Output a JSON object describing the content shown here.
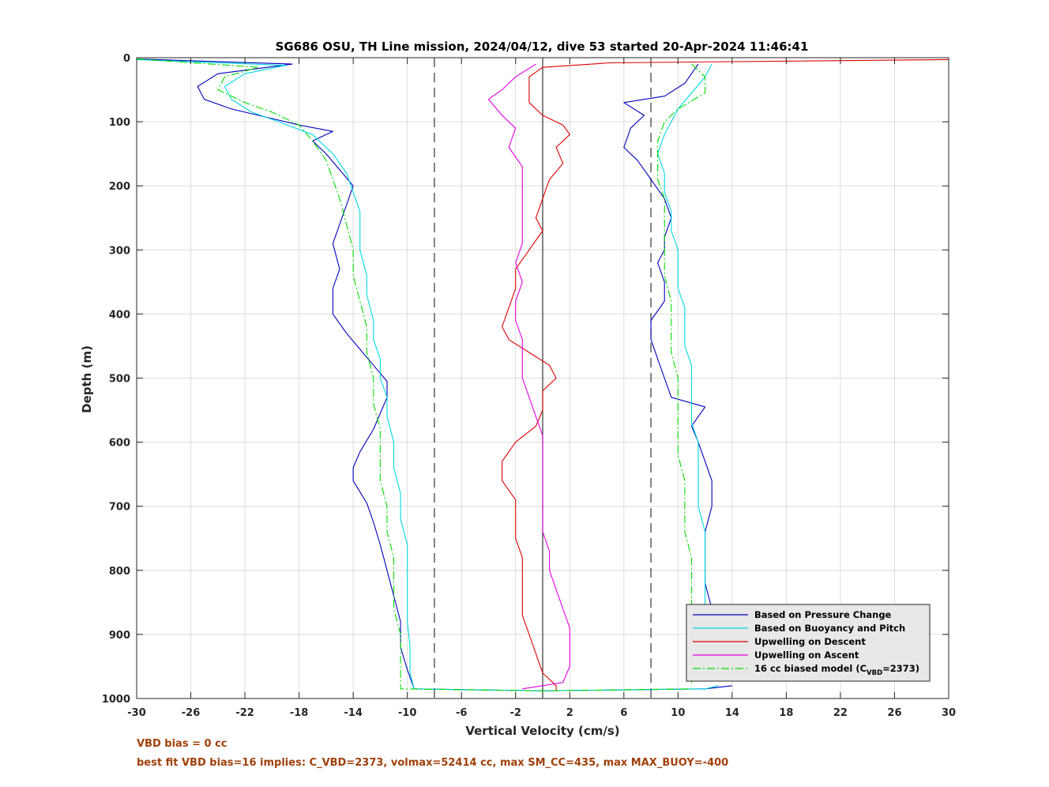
{
  "chart_data": {
    "type": "line",
    "title": "SG686 OSU, TH Line mission, 2024/04/12, dive 53 started 20-Apr-2024 11:46:41",
    "xlabel": "Vertical Velocity (cm/s)",
    "ylabel": "Depth (m)",
    "xlim": [
      -30,
      30
    ],
    "ylim": [
      0,
      1000
    ],
    "y_reversed": true,
    "grid": true,
    "x_ticks": [
      -30,
      -26,
      -22,
      -18,
      -14,
      -10,
      -6,
      -2,
      2,
      6,
      10,
      14,
      18,
      22,
      26,
      30
    ],
    "y_ticks": [
      0,
      100,
      200,
      300,
      400,
      500,
      600,
      700,
      800,
      900,
      1000
    ],
    "reference_lines": {
      "dashed_x": [
        -8,
        8
      ],
      "solid_x": [
        0
      ]
    },
    "legend_position": "bottom-right",
    "series": [
      {
        "name": "Based on Pressure Change",
        "color": "#0000bb",
        "style": "solid",
        "points": [
          [
            -30,
            2
          ],
          [
            -18.5,
            10
          ],
          [
            -24,
            25
          ],
          [
            -25.5,
            45
          ],
          [
            -25,
            65
          ],
          [
            -23,
            80
          ],
          [
            -20,
            95
          ],
          [
            -18,
            105
          ],
          [
            -15.5,
            115
          ],
          [
            -17,
            130
          ],
          [
            -16,
            150
          ],
          [
            -15,
            175
          ],
          [
            -14,
            200
          ],
          [
            -14.5,
            230
          ],
          [
            -15,
            260
          ],
          [
            -15.5,
            290
          ],
          [
            -15,
            330
          ],
          [
            -15.5,
            360
          ],
          [
            -15.5,
            400
          ],
          [
            -14.5,
            430
          ],
          [
            -13.5,
            455
          ],
          [
            -12.5,
            480
          ],
          [
            -11.5,
            505
          ],
          [
            -11.5,
            530
          ],
          [
            -12,
            555
          ],
          [
            -12.5,
            580
          ],
          [
            -13.5,
            615
          ],
          [
            -14,
            640
          ],
          [
            -14,
            660
          ],
          [
            -13,
            695
          ],
          [
            -12.5,
            725
          ],
          [
            -12,
            760
          ],
          [
            -11.5,
            800
          ],
          [
            -11,
            840
          ],
          [
            -10.5,
            880
          ],
          [
            -10.5,
            920
          ],
          [
            -10,
            955
          ],
          [
            -9.5,
            985
          ],
          [
            0,
            988
          ],
          [
            12,
            985
          ],
          [
            14,
            980
          ]
        ]
      },
      {
        "name": "Based on Buoyancy and Pitch",
        "color": "#00d8e0",
        "style": "solid",
        "points": [
          [
            -30,
            3
          ],
          [
            -19,
            12
          ],
          [
            -22,
            25
          ],
          [
            -23.5,
            45
          ],
          [
            -23,
            65
          ],
          [
            -21.5,
            85
          ],
          [
            -19.5,
            100
          ],
          [
            -17,
            120
          ],
          [
            -15.5,
            150
          ],
          [
            -14.5,
            180
          ],
          [
            -14,
            210
          ],
          [
            -13.5,
            240
          ],
          [
            -13.5,
            270
          ],
          [
            -13.5,
            300
          ],
          [
            -13,
            340
          ],
          [
            -13,
            370
          ],
          [
            -12.5,
            410
          ],
          [
            -12.5,
            440
          ],
          [
            -12,
            470
          ],
          [
            -12,
            500
          ],
          [
            -11.5,
            530
          ],
          [
            -11.5,
            560
          ],
          [
            -11,
            600
          ],
          [
            -11,
            640
          ],
          [
            -10.5,
            680
          ],
          [
            -10.5,
            720
          ],
          [
            -10,
            760
          ],
          [
            -10,
            800
          ],
          [
            -10,
            840
          ],
          [
            -10,
            880
          ],
          [
            -9.8,
            920
          ],
          [
            -9.8,
            960
          ],
          [
            -9.5,
            985
          ],
          [
            0,
            988
          ],
          [
            12,
            985
          ],
          [
            13,
            980
          ]
        ]
      },
      {
        "name": "Upwelling on Descent",
        "color": "#dd0000",
        "style": "solid",
        "points": [
          [
            30,
            3
          ],
          [
            5,
            8
          ],
          [
            0,
            15
          ],
          [
            -1,
            30
          ],
          [
            -1,
            50
          ],
          [
            -1,
            70
          ],
          [
            0,
            90
          ],
          [
            1.5,
            105
          ],
          [
            2,
            120
          ],
          [
            1,
            140
          ],
          [
            1.5,
            165
          ],
          [
            0.5,
            190
          ],
          [
            0,
            220
          ],
          [
            -0.5,
            250
          ],
          [
            0,
            270
          ],
          [
            -1,
            300
          ],
          [
            -2,
            330
          ],
          [
            -2,
            360
          ],
          [
            -2.5,
            390
          ],
          [
            -3,
            420
          ],
          [
            -2.5,
            440
          ],
          [
            -1,
            460
          ],
          [
            0.5,
            480
          ],
          [
            1,
            500
          ],
          [
            0,
            520
          ],
          [
            0,
            550
          ],
          [
            -0.5,
            575
          ],
          [
            -2,
            600
          ],
          [
            -3,
            630
          ],
          [
            -3,
            660
          ],
          [
            -2,
            690
          ],
          [
            -2,
            720
          ],
          [
            -2,
            750
          ],
          [
            -1.5,
            780
          ],
          [
            -1.5,
            810
          ],
          [
            -1.5,
            840
          ],
          [
            -1.5,
            870
          ],
          [
            -1,
            900
          ],
          [
            -0.5,
            930
          ],
          [
            0,
            960
          ],
          [
            1,
            980
          ],
          [
            1,
            988
          ]
        ]
      },
      {
        "name": "Upwelling on Ascent",
        "color": "#e000e0",
        "style": "solid",
        "points": [
          [
            -0.5,
            10
          ],
          [
            -2,
            30
          ],
          [
            -3,
            50
          ],
          [
            -4,
            65
          ],
          [
            -3,
            90
          ],
          [
            -2,
            110
          ],
          [
            -2.5,
            140
          ],
          [
            -1.5,
            170
          ],
          [
            -1.5,
            200
          ],
          [
            -1.5,
            230
          ],
          [
            -1.5,
            260
          ],
          [
            -1.5,
            290
          ],
          [
            -2,
            320
          ],
          [
            -1.5,
            350
          ],
          [
            -2,
            380
          ],
          [
            -2,
            410
          ],
          [
            -1.5,
            440
          ],
          [
            -1.5,
            470
          ],
          [
            -1.5,
            500
          ],
          [
            -1,
            530
          ],
          [
            -0.5,
            560
          ],
          [
            0,
            590
          ],
          [
            0,
            620
          ],
          [
            0,
            650
          ],
          [
            0,
            680
          ],
          [
            0,
            710
          ],
          [
            0,
            740
          ],
          [
            0.5,
            770
          ],
          [
            0.5,
            800
          ],
          [
            1,
            830
          ],
          [
            1.5,
            860
          ],
          [
            2,
            890
          ],
          [
            2,
            920
          ],
          [
            2,
            950
          ],
          [
            1.5,
            975
          ],
          [
            -1.5,
            985
          ]
        ]
      },
      {
        "name": "16 cc biased model (C_VBD=2373)",
        "legend_sub": "VBD",
        "legend_prefix": "16 cc biased model (C",
        "legend_suffix": "=2373)",
        "color": "#00dd00",
        "style": "dashdot",
        "points": [
          [
            -30,
            2
          ],
          [
            -21,
            15
          ],
          [
            -23.5,
            30
          ],
          [
            -24,
            50
          ],
          [
            -22,
            70
          ],
          [
            -20,
            85
          ],
          [
            -18,
            105
          ],
          [
            -17,
            130
          ],
          [
            -16,
            160
          ],
          [
            -15.5,
            190
          ],
          [
            -15,
            220
          ],
          [
            -14.5,
            260
          ],
          [
            -14,
            300
          ],
          [
            -14,
            340
          ],
          [
            -13.5,
            380
          ],
          [
            -13,
            420
          ],
          [
            -13,
            460
          ],
          [
            -12.5,
            500
          ],
          [
            -12.5,
            540
          ],
          [
            -12,
            580
          ],
          [
            -12,
            620
          ],
          [
            -12,
            660
          ],
          [
            -11.5,
            700
          ],
          [
            -11.5,
            740
          ],
          [
            -11,
            780
          ],
          [
            -11,
            820
          ],
          [
            -11,
            860
          ],
          [
            -10.5,
            900
          ],
          [
            -10.5,
            940
          ],
          [
            -10.5,
            985
          ],
          [
            0,
            988
          ],
          [
            11,
            985
          ]
        ]
      },
      {
        "name": "Based on Pressure Change (ascent)",
        "legend": false,
        "color": "#0000bb",
        "style": "solid",
        "points": [
          [
            11.5,
            10
          ],
          [
            10.5,
            40
          ],
          [
            9,
            60
          ],
          [
            6,
            70
          ],
          [
            7.5,
            90
          ],
          [
            6.5,
            110
          ],
          [
            6,
            140
          ],
          [
            7,
            160
          ],
          [
            8,
            190
          ],
          [
            9,
            220
          ],
          [
            9.5,
            250
          ],
          [
            9,
            280
          ],
          [
            9,
            300
          ],
          [
            8.5,
            320
          ],
          [
            9,
            350
          ],
          [
            9,
            380
          ],
          [
            8,
            410
          ],
          [
            8,
            440
          ],
          [
            8.5,
            470
          ],
          [
            9,
            500
          ],
          [
            9.5,
            530
          ],
          [
            12,
            545
          ],
          [
            11,
            575
          ],
          [
            11.5,
            600
          ],
          [
            12,
            630
          ],
          [
            12.5,
            660
          ],
          [
            12.5,
            700
          ],
          [
            12,
            740
          ],
          [
            12,
            780
          ],
          [
            12,
            820
          ],
          [
            12.5,
            860
          ],
          [
            12.5,
            900
          ],
          [
            13,
            940
          ],
          [
            13.5,
            970
          ]
        ]
      },
      {
        "name": "Based on Buoyancy and Pitch (ascent)",
        "legend": false,
        "color": "#00d8e0",
        "style": "solid",
        "points": [
          [
            12.5,
            10
          ],
          [
            12,
            30
          ],
          [
            11,
            55
          ],
          [
            10,
            80
          ],
          [
            9.5,
            100
          ],
          [
            9,
            120
          ],
          [
            8.5,
            150
          ],
          [
            9,
            180
          ],
          [
            9,
            210
          ],
          [
            9.5,
            240
          ],
          [
            9.5,
            270
          ],
          [
            10,
            300
          ],
          [
            10,
            330
          ],
          [
            10,
            360
          ],
          [
            10.5,
            390
          ],
          [
            10.5,
            420
          ],
          [
            10.5,
            450
          ],
          [
            11,
            480
          ],
          [
            11,
            510
          ],
          [
            11,
            540
          ],
          [
            11,
            570
          ],
          [
            11.5,
            600
          ],
          [
            11.5,
            630
          ],
          [
            11.5,
            660
          ],
          [
            11.5,
            700
          ],
          [
            12,
            740
          ],
          [
            12,
            780
          ],
          [
            12,
            820
          ],
          [
            12,
            860
          ],
          [
            12.5,
            900
          ],
          [
            12.5,
            940
          ],
          [
            12.5,
            970
          ]
        ]
      },
      {
        "name": "16 cc biased model (ascent)",
        "legend": false,
        "color": "#00dd00",
        "style": "dashdot",
        "points": [
          [
            11,
            10
          ],
          [
            12,
            30
          ],
          [
            12,
            55
          ],
          [
            10,
            80
          ],
          [
            9,
            100
          ],
          [
            8.5,
            130
          ],
          [
            8.5,
            160
          ],
          [
            8.5,
            190
          ],
          [
            9,
            220
          ],
          [
            9,
            260
          ],
          [
            9,
            300
          ],
          [
            9,
            340
          ],
          [
            9.5,
            380
          ],
          [
            9.5,
            420
          ],
          [
            9.5,
            460
          ],
          [
            10,
            500
          ],
          [
            10,
            540
          ],
          [
            10,
            580
          ],
          [
            10,
            620
          ],
          [
            10.5,
            660
          ],
          [
            10.5,
            700
          ],
          [
            10.5,
            740
          ],
          [
            11,
            780
          ],
          [
            11,
            820
          ],
          [
            11,
            860
          ],
          [
            11,
            900
          ],
          [
            11,
            940
          ],
          [
            11,
            980
          ]
        ]
      }
    ]
  },
  "notes": {
    "vbd_bias": "VBD bias = 0 cc",
    "best_fit": "best fit VBD bias=16 implies: C_VBD=2373, volmax=52414 cc, max SM_CC=435, max MAX_BUOY=-400"
  },
  "colors": {
    "note_text": "#a0400a",
    "grid": "#dcdcdc",
    "legend_bg": "#e8e8e8"
  }
}
